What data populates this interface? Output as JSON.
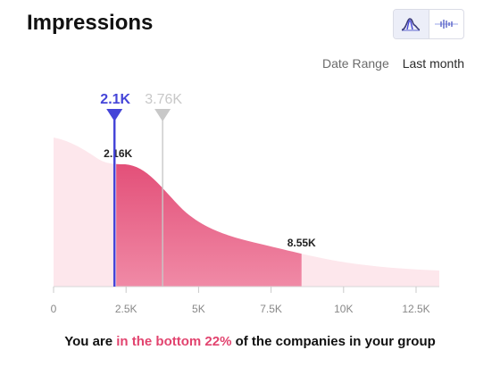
{
  "header": {
    "title": "Impressions"
  },
  "view_toggle": {
    "active": "distribution",
    "options": [
      "distribution-icon",
      "timeline-icon"
    ]
  },
  "date_range": {
    "label": "Date Range",
    "value": "Last month"
  },
  "colors": {
    "light_fill": "#fde7ec",
    "dark_fill_top": "#e0436f",
    "dark_fill_bottom": "#f08aa6",
    "you_marker": "#4545d8",
    "group_marker": "#c8c8c8"
  },
  "chart_data": {
    "type": "area",
    "title": "",
    "xlabel": "",
    "ylabel": "",
    "xlim": [
      0,
      13300
    ],
    "x_ticks": [
      0,
      2500,
      5000,
      7500,
      10000,
      12500
    ],
    "x_tick_labels": [
      "0",
      "2.5K",
      "5K",
      "7.5K",
      "10K",
      "12.5K"
    ],
    "highlight_range": [
      2160,
      8550
    ],
    "range_labels": [
      {
        "x": 2160,
        "text": "2.16K"
      },
      {
        "x": 8550,
        "text": "8.55K"
      }
    ],
    "markers": [
      {
        "name": "you",
        "x": 2100,
        "label": "2.1K",
        "color": "#4545d8"
      },
      {
        "name": "group",
        "x": 3760,
        "label": "3.76K",
        "color": "#c8c8c8"
      }
    ]
  },
  "summary": {
    "prefix": "You are ",
    "highlight": "in the bottom 22%",
    "suffix": " of the companies in your group"
  }
}
